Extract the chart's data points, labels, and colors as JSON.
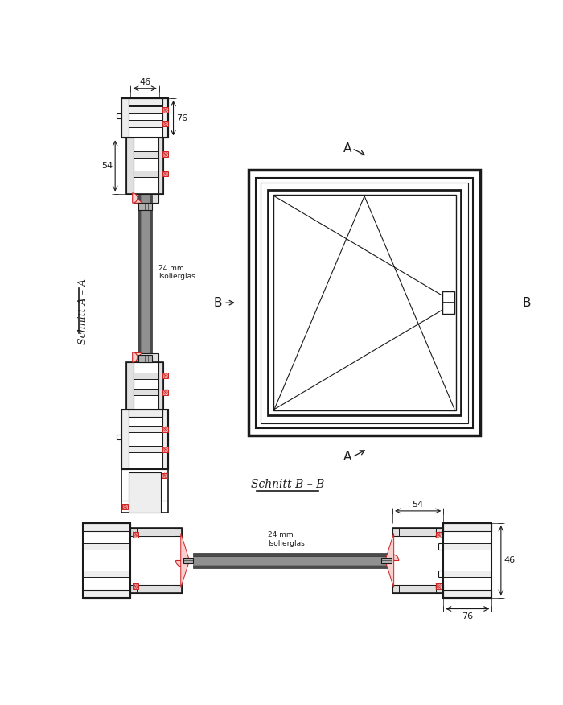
{
  "bg_color": "#ffffff",
  "lc": "#1a1a1a",
  "rc": "#cc2222",
  "gc_dark": "#5a5a5a",
  "gc_mid": "#888888",
  "gc_light": "#d0d0d0",
  "frame_fill": "#eeeeee",
  "sash_fill": "#e0e0e0",
  "section_aa": "Schnitt A – A",
  "section_bb": "Schnitt B – B",
  "label_24mm": "24 mm\nIsolierglas",
  "dim_46": "46",
  "dim_76": "76",
  "dim_54": "54",
  "dim_45": "46",
  "dim_76b": "76",
  "label_A": "A",
  "label_B": "B"
}
